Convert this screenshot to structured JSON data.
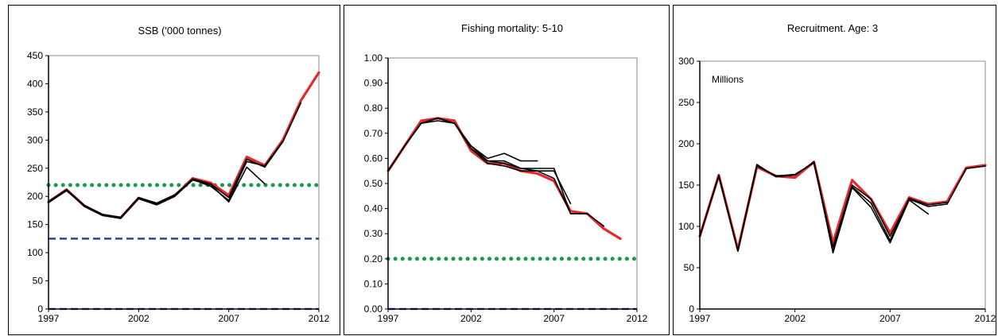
{
  "chart_data": [
    {
      "type": "line",
      "title": "SSB ('000 tonnes)",
      "xlabel": "",
      "ylabel": "",
      "xlim": [
        1997,
        2012
      ],
      "ylim": [
        0,
        450
      ],
      "x_ticks": [
        1997,
        2002,
        2007,
        2012
      ],
      "y_ticks": [
        0,
        50,
        100,
        150,
        200,
        250,
        300,
        350,
        400,
        450
      ],
      "y_tick_labels": [
        "0",
        "50",
        "100",
        "150",
        "200",
        "250",
        "300",
        "350",
        "400",
        "450"
      ],
      "grid": false,
      "reference_lines": [
        {
          "value": 220,
          "style": "dotted",
          "color": "#1a9a4a"
        },
        {
          "value": 125,
          "style": "dashed",
          "color": "#1f3b9e"
        },
        {
          "value": 0,
          "style": "dashed",
          "color": "#2a4fbf"
        }
      ],
      "series": [
        {
          "color": "#e8282b",
          "width": 3.2,
          "x": [
            1997,
            1998,
            1999,
            2000,
            2001,
            2002,
            2003,
            2004,
            2005,
            2006,
            2007,
            2008,
            2009,
            2010,
            2011,
            2012
          ],
          "values": [
            190,
            212,
            183,
            167,
            162,
            197,
            186,
            201,
            232,
            224,
            202,
            270,
            255,
            300,
            370,
            420
          ]
        },
        {
          "color": "#000000",
          "width": 1.6,
          "x": [
            1997,
            1998,
            1999,
            2000,
            2001,
            2002,
            2003,
            2004,
            2005,
            2006,
            2007,
            2008,
            2009,
            2010,
            2011
          ],
          "values": [
            190,
            211,
            182,
            166,
            161,
            196,
            187,
            202,
            231,
            222,
            198,
            266,
            252,
            297,
            366
          ]
        },
        {
          "color": "#000000",
          "width": 1.6,
          "x": [
            1997,
            1998,
            1999,
            2000,
            2001,
            2002,
            2003,
            2004,
            2005,
            2006,
            2007,
            2008,
            2009,
            2010
          ],
          "values": [
            191,
            212,
            184,
            168,
            163,
            198,
            188,
            203,
            230,
            218,
            193,
            262,
            254,
            298
          ]
        },
        {
          "color": "#000000",
          "width": 1.6,
          "x": [
            1997,
            1998,
            1999,
            2000,
            2001,
            2002,
            2003,
            2004,
            2005,
            2006,
            2007,
            2008,
            2009
          ],
          "values": [
            189,
            210,
            183,
            167,
            162,
            196,
            185,
            200,
            229,
            221,
            190,
            252,
            222
          ]
        }
      ]
    },
    {
      "type": "line",
      "title": "Fishing mortality: 5-10",
      "xlabel": "",
      "ylabel": "",
      "xlim": [
        1997,
        2012
      ],
      "ylim": [
        0,
        1.0
      ],
      "x_ticks": [
        1997,
        2002,
        2007,
        2012
      ],
      "y_ticks": [
        0,
        0.1,
        0.2,
        0.3,
        0.4,
        0.5,
        0.6,
        0.7,
        0.8,
        0.9,
        1.0
      ],
      "y_tick_labels": [
        "0.00",
        "0.10",
        "0.20",
        "0.30",
        "0.40",
        "0.50",
        "0.60",
        "0.70",
        "0.80",
        "0.90",
        "1.00"
      ],
      "grid": false,
      "reference_lines": [
        {
          "value": 0.2,
          "style": "dotted",
          "color": "#1a9a4a"
        },
        {
          "value": 0.0,
          "style": "dashed",
          "color": "#2a4fbf"
        }
      ],
      "series": [
        {
          "color": "#e8282b",
          "width": 3.2,
          "x": [
            1997,
            1998,
            1999,
            2000,
            2001,
            2002,
            2003,
            2004,
            2005,
            2006,
            2007,
            2008,
            2009,
            2010,
            2011
          ],
          "values": [
            0.55,
            0.65,
            0.75,
            0.76,
            0.75,
            0.63,
            0.58,
            0.58,
            0.55,
            0.54,
            0.51,
            0.39,
            0.38,
            0.32,
            0.28
          ]
        },
        {
          "color": "#000000",
          "width": 1.6,
          "x": [
            1997,
            1998,
            1999,
            2000,
            2001,
            2002,
            2003,
            2004,
            2005,
            2006,
            2007,
            2008,
            2009,
            2010
          ],
          "values": [
            0.55,
            0.65,
            0.74,
            0.76,
            0.74,
            0.64,
            0.58,
            0.57,
            0.55,
            0.55,
            0.52,
            0.38,
            0.38,
            0.33
          ]
        },
        {
          "color": "#000000",
          "width": 1.6,
          "x": [
            1997,
            1998,
            1999,
            2000,
            2001,
            2002,
            2003,
            2004,
            2005,
            2006,
            2007,
            2008,
            2009
          ],
          "values": [
            0.55,
            0.65,
            0.74,
            0.76,
            0.74,
            0.64,
            0.59,
            0.59,
            0.56,
            0.56,
            0.56,
            0.38,
            0.38
          ]
        },
        {
          "color": "#000000",
          "width": 1.6,
          "x": [
            1997,
            1998,
            1999,
            2000,
            2001,
            2002,
            2003,
            2004,
            2005,
            2006,
            2007,
            2008
          ],
          "values": [
            0.55,
            0.65,
            0.74,
            0.76,
            0.74,
            0.65,
            0.59,
            0.58,
            0.56,
            0.55,
            0.55,
            0.42
          ]
        },
        {
          "color": "#000000",
          "width": 1.6,
          "x": [
            1997,
            1998,
            1999,
            2000,
            2001,
            2002,
            2003,
            2004,
            2005,
            2006
          ],
          "values": [
            0.55,
            0.65,
            0.74,
            0.75,
            0.74,
            0.65,
            0.6,
            0.62,
            0.59,
            0.59
          ]
        }
      ]
    },
    {
      "type": "line",
      "title": "Recruitment. Age: 3",
      "xlabel": "",
      "ylabel": "",
      "annotation": "Millions",
      "xlim": [
        1997,
        2012
      ],
      "ylim": [
        0,
        300
      ],
      "x_ticks": [
        1997,
        2002,
        2007,
        2012
      ],
      "y_ticks": [
        0,
        50,
        100,
        150,
        200,
        250,
        300
      ],
      "y_tick_labels": [
        "0",
        "50",
        "100",
        "150",
        "200",
        "250",
        "300"
      ],
      "grid": false,
      "reference_lines": [],
      "series": [
        {
          "color": "#e8282b",
          "width": 3.2,
          "x": [
            1997,
            1998,
            1999,
            2000,
            2001,
            2002,
            2003,
            2004,
            2005,
            2006,
            2007,
            2008,
            2009,
            2010,
            2011,
            2012
          ],
          "values": [
            88,
            162,
            72,
            172,
            161,
            159,
            178,
            80,
            156,
            133,
            92,
            135,
            127,
            130,
            171,
            174
          ]
        },
        {
          "color": "#000000",
          "width": 1.6,
          "x": [
            1997,
            1998,
            1999,
            2000,
            2001,
            2002,
            2003,
            2004,
            2005,
            2006,
            2007,
            2008,
            2009,
            2010,
            2011,
            2012
          ],
          "values": [
            88,
            162,
            71,
            175,
            160,
            162,
            178,
            75,
            150,
            133,
            88,
            133,
            124,
            127,
            170,
            173
          ]
        },
        {
          "color": "#000000",
          "width": 1.6,
          "x": [
            1997,
            1998,
            1999,
            2000,
            2001,
            2002,
            2003,
            2004,
            2005,
            2006,
            2007,
            2008,
            2009,
            2010
          ],
          "values": [
            88,
            161,
            70,
            174,
            161,
            163,
            177,
            70,
            148,
            128,
            83,
            134,
            126,
            129
          ]
        },
        {
          "color": "#000000",
          "width": 1.6,
          "x": [
            1997,
            1998,
            1999,
            2000,
            2001,
            2002,
            2003,
            2004,
            2005,
            2006,
            2007,
            2008,
            2009
          ],
          "values": [
            88,
            161,
            70,
            173,
            161,
            162,
            178,
            68,
            147,
            123,
            80,
            132,
            115
          ]
        }
      ]
    }
  ]
}
